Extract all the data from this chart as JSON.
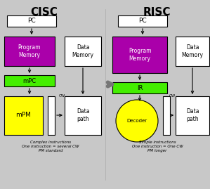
{
  "bg_color": "#c8c8c8",
  "box_white": "#ffffff",
  "box_purple": "#aa00aa",
  "box_green": "#44ee00",
  "box_yellow": "#ffff00",
  "arrow_dark": "#000000",
  "arrow_mid": "#888888",
  "title_cisc": "CISC",
  "title_risc": "RISC",
  "white_text": "#ffffff",
  "black_text": "#000000",
  "footer_cisc": "Complex instructions\nOne instruction = several CW\nPM standard",
  "footer_risc": "Simple instructions\nOne instruction = One CW\nPM longer"
}
